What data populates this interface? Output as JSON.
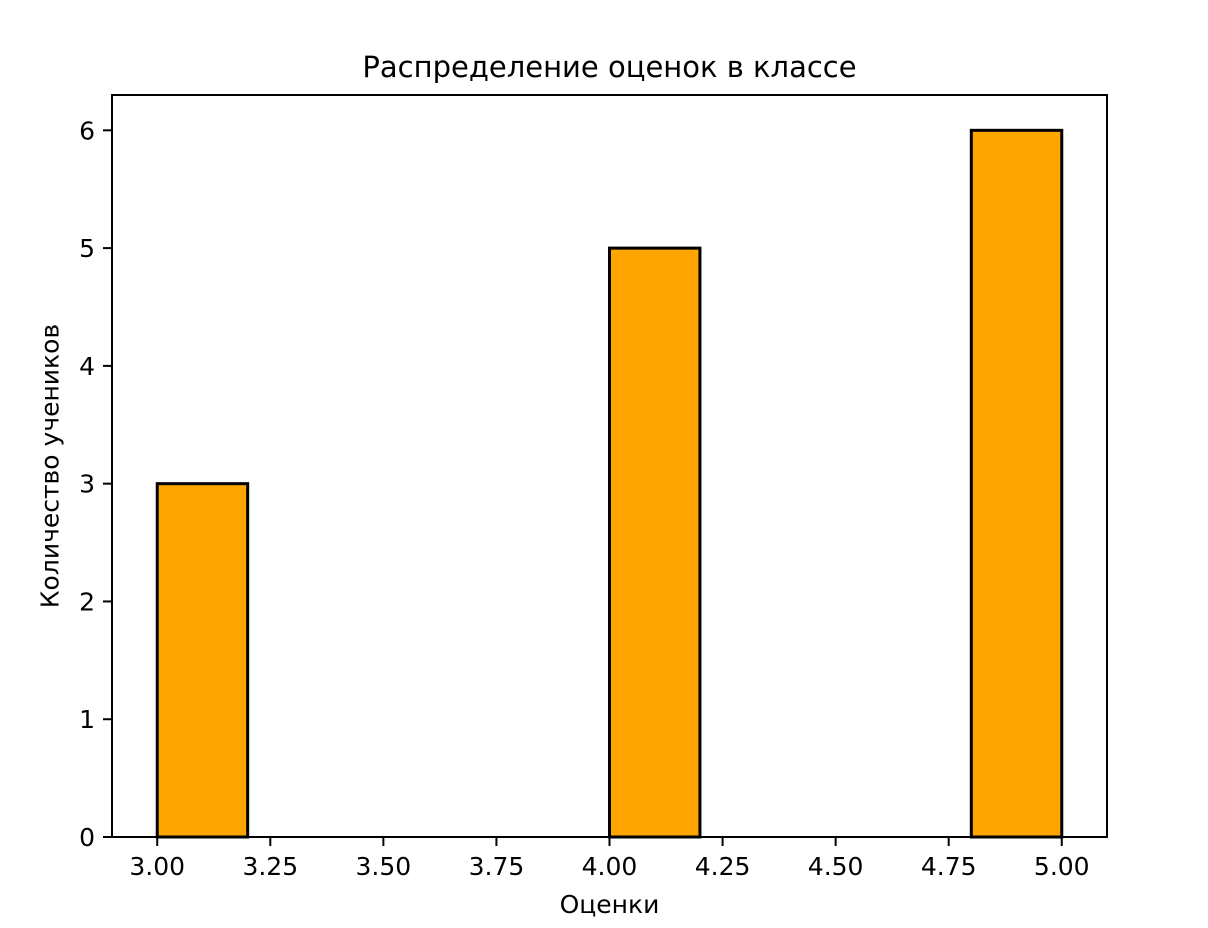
{
  "figure": {
    "background": "#ffffff",
    "text_color": "#000000"
  },
  "chart_data": {
    "type": "bar",
    "subtype": "histogram",
    "title": "Распределение оценок в классе",
    "xlabel": "Оценки",
    "ylabel": "Количество учеников",
    "bar_color": "#FFA500",
    "bar_edge_color": "#000000",
    "axis_color": "#000000",
    "grid": false,
    "legend": false,
    "xlim": [
      2.9,
      5.1
    ],
    "ylim": [
      0,
      6.3
    ],
    "bars": [
      {
        "x_start": 3.0,
        "x_end": 3.2,
        "count": 3
      },
      {
        "x_start": 4.0,
        "x_end": 4.2,
        "count": 5
      },
      {
        "x_start": 4.8,
        "x_end": 5.0,
        "count": 6
      }
    ],
    "xticks": {
      "values": [
        3.0,
        3.25,
        3.5,
        3.75,
        4.0,
        4.25,
        4.5,
        4.75,
        5.0
      ],
      "labels": [
        "3.00",
        "3.25",
        "3.50",
        "3.75",
        "4.00",
        "4.25",
        "4.50",
        "4.75",
        "5.00"
      ]
    },
    "yticks": {
      "values": [
        0,
        1,
        2,
        3,
        4,
        5,
        6
      ],
      "labels": [
        "0",
        "1",
        "2",
        "3",
        "4",
        "5",
        "6"
      ]
    }
  }
}
